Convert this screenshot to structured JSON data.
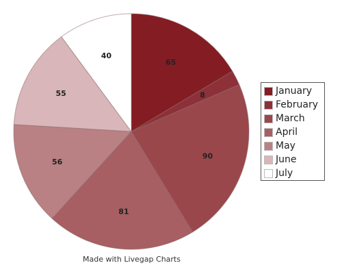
{
  "chart_data": {
    "type": "pie",
    "title": "",
    "categories": [
      "January",
      "February",
      "March",
      "April",
      "May",
      "June",
      "July"
    ],
    "values": [
      65,
      8,
      90,
      81,
      56,
      55,
      40
    ],
    "colors": [
      "#841d23",
      "#8e3038",
      "#9a474c",
      "#a75f63",
      "#b98183",
      "#d9b6b9",
      "#ffffff"
    ],
    "legend_position": "right",
    "data_labels": true
  },
  "footer": {
    "credit": "Made with Livegap Charts"
  }
}
